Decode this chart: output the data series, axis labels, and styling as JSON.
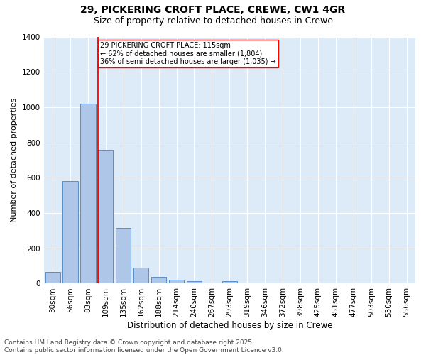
{
  "title1": "29, PICKERING CROFT PLACE, CREWE, CW1 4GR",
  "title2": "Size of property relative to detached houses in Crewe",
  "xlabel": "Distribution of detached houses by size in Crewe",
  "ylabel": "Number of detached properties",
  "bin_labels": [
    "30sqm",
    "56sqm",
    "83sqm",
    "109sqm",
    "135sqm",
    "162sqm",
    "188sqm",
    "214sqm",
    "240sqm",
    "267sqm",
    "293sqm",
    "319sqm",
    "346sqm",
    "372sqm",
    "398sqm",
    "425sqm",
    "451sqm",
    "477sqm",
    "503sqm",
    "530sqm",
    "556sqm"
  ],
  "bar_values": [
    65,
    580,
    1020,
    760,
    315,
    90,
    38,
    22,
    13,
    0,
    13,
    0,
    0,
    0,
    0,
    0,
    0,
    0,
    0,
    0,
    0
  ],
  "bar_color": "#aec6e8",
  "bar_edge_color": "#5b8dc8",
  "property_bin_index": 3,
  "property_line_color": "red",
  "annotation_text": "29 PICKERING CROFT PLACE: 115sqm\n← 62% of detached houses are smaller (1,804)\n36% of semi-detached houses are larger (1,035) →",
  "annotation_box_color": "white",
  "annotation_box_edge": "red",
  "ylim": [
    0,
    1400
  ],
  "background_color": "#ddeaf7",
  "grid_color": "white",
  "footer_text": "Contains HM Land Registry data © Crown copyright and database right 2025.\nContains public sector information licensed under the Open Government Licence v3.0.",
  "title1_fontsize": 10,
  "title2_fontsize": 9,
  "xlabel_fontsize": 8.5,
  "ylabel_fontsize": 8,
  "tick_fontsize": 7.5,
  "annotation_fontsize": 7,
  "footer_fontsize": 6.5
}
